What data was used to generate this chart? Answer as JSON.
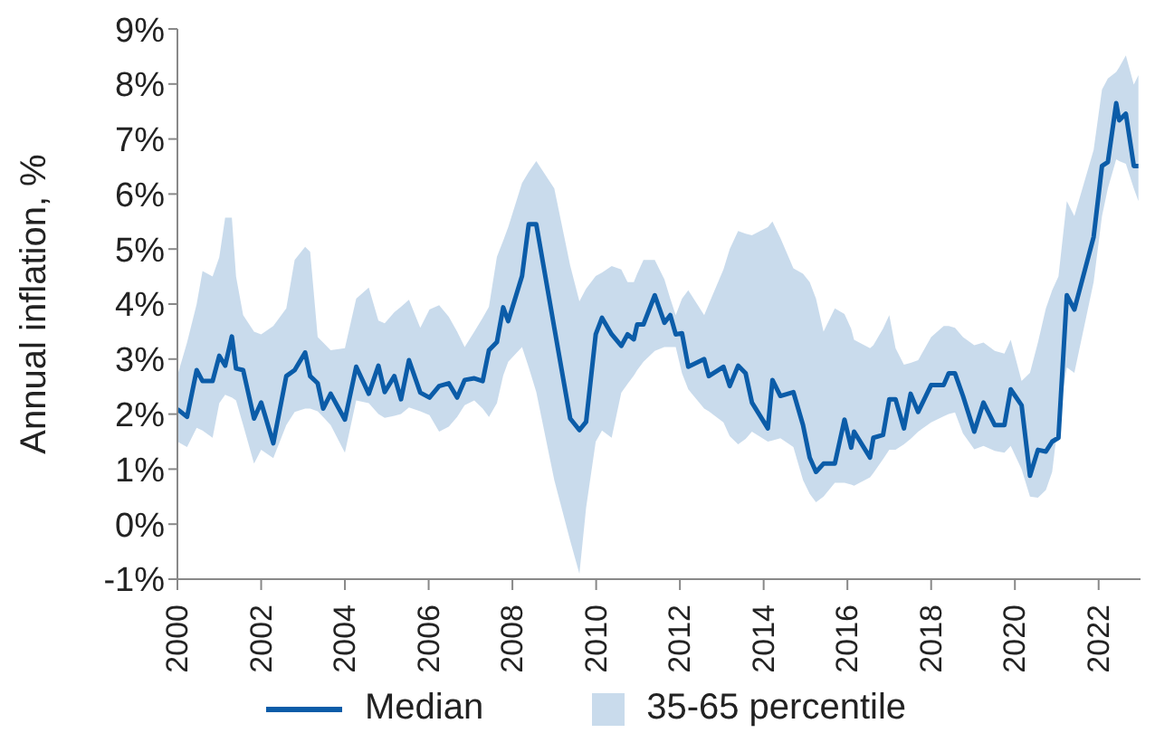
{
  "chart_data": {
    "type": "line",
    "ylabel": "Annual inflation, %",
    "xlim": [
      2000,
      2023
    ],
    "xticks": [
      2000,
      2002,
      2004,
      2006,
      2008,
      2010,
      2012,
      2014,
      2016,
      2018,
      2020,
      2022
    ],
    "ylim": [
      -1,
      9
    ],
    "yticks": [
      {
        "value": -1,
        "label": "-1%"
      },
      {
        "value": 0,
        "label": "0%"
      },
      {
        "value": 1,
        "label": "1%"
      },
      {
        "value": 2,
        "label": "2%"
      },
      {
        "value": 3,
        "label": "3%"
      },
      {
        "value": 4,
        "label": "4%"
      },
      {
        "value": 5,
        "label": "5%"
      },
      {
        "value": 6,
        "label": "6%"
      },
      {
        "value": 7,
        "label": "7%"
      },
      {
        "value": 8,
        "label": "8%"
      },
      {
        "value": 9,
        "label": "9%"
      }
    ],
    "grid": false,
    "legend": "bottom",
    "line_style": "solid",
    "marker": "none",
    "annotations": [
      "35-65 percentile"
    ],
    "series": [
      {
        "name": "Median",
        "color": "#0b5ca8",
        "x": [
          2000.0,
          2000.23,
          2000.46,
          2000.6,
          2000.84,
          2001.0,
          2001.14,
          2001.3,
          2001.4,
          2001.57,
          2001.83,
          2002.0,
          2002.29,
          2002.6,
          2002.8,
          2003.05,
          2003.17,
          2003.35,
          2003.48,
          2003.66,
          2004.0,
          2004.27,
          2004.57,
          2004.8,
          2004.95,
          2005.18,
          2005.34,
          2005.53,
          2005.8,
          2006.02,
          2006.25,
          2006.48,
          2006.68,
          2006.86,
          2007.09,
          2007.29,
          2007.44,
          2007.63,
          2007.78,
          2007.9,
          2008.23,
          2008.39,
          2008.57,
          2009.0,
          2009.38,
          2009.6,
          2009.76,
          2009.99,
          2010.14,
          2010.37,
          2010.6,
          2010.75,
          2010.9,
          2010.98,
          2011.13,
          2011.4,
          2011.63,
          2011.77,
          2011.9,
          2012.05,
          2012.2,
          2012.58,
          2012.69,
          2013.04,
          2013.19,
          2013.39,
          2013.57,
          2013.72,
          2014.1,
          2014.21,
          2014.4,
          2014.71,
          2014.94,
          2015.1,
          2015.25,
          2015.43,
          2015.7,
          2015.93,
          2016.09,
          2016.16,
          2016.54,
          2016.62,
          2016.85,
          2017.0,
          2017.15,
          2017.35,
          2017.51,
          2017.69,
          2018.0,
          2018.3,
          2018.42,
          2018.57,
          2018.76,
          2019.03,
          2019.25,
          2019.52,
          2019.75,
          2019.9,
          2020.16,
          2020.36,
          2020.55,
          2020.74,
          2020.89,
          2021.04,
          2021.24,
          2021.42,
          2021.88,
          2022.08,
          2022.22,
          2022.42,
          2022.49,
          2022.65,
          2022.84,
          2022.95
        ],
        "values": [
          2.09,
          1.95,
          2.8,
          2.6,
          2.6,
          3.06,
          2.88,
          3.41,
          2.83,
          2.8,
          1.92,
          2.21,
          1.47,
          2.69,
          2.8,
          3.12,
          2.69,
          2.56,
          2.1,
          2.37,
          1.9,
          2.86,
          2.37,
          2.88,
          2.4,
          2.69,
          2.27,
          2.98,
          2.39,
          2.3,
          2.51,
          2.56,
          2.3,
          2.62,
          2.65,
          2.6,
          3.16,
          3.31,
          3.94,
          3.69,
          4.51,
          5.45,
          5.45,
          3.57,
          1.92,
          1.71,
          1.86,
          3.45,
          3.75,
          3.45,
          3.24,
          3.45,
          3.36,
          3.63,
          3.63,
          4.16,
          3.66,
          3.8,
          3.45,
          3.47,
          2.86,
          3.0,
          2.69,
          2.86,
          2.51,
          2.88,
          2.74,
          2.21,
          1.74,
          2.62,
          2.33,
          2.4,
          1.8,
          1.21,
          0.95,
          1.1,
          1.1,
          1.9,
          1.39,
          1.68,
          1.21,
          1.57,
          1.62,
          2.27,
          2.27,
          1.74,
          2.37,
          2.04,
          2.53,
          2.53,
          2.74,
          2.74,
          2.33,
          1.68,
          2.21,
          1.8,
          1.8,
          2.45,
          2.16,
          0.88,
          1.35,
          1.32,
          1.5,
          1.57,
          4.16,
          3.9,
          5.22,
          6.51,
          6.58,
          7.65,
          7.34,
          7.46,
          6.51,
          6.51
        ],
        "lower": [
          1.5,
          1.4,
          1.75,
          1.7,
          1.57,
          2.2,
          2.35,
          2.3,
          2.25,
          1.8,
          1.1,
          1.35,
          1.2,
          1.8,
          2.04,
          2.1,
          2.1,
          2.05,
          1.95,
          1.8,
          1.3,
          2.25,
          2.2,
          2.0,
          1.93,
          1.97,
          2.0,
          2.12,
          2.05,
          1.98,
          1.68,
          1.77,
          1.95,
          2.16,
          2.25,
          2.1,
          1.95,
          2.2,
          2.7,
          2.95,
          3.22,
          2.85,
          2.4,
          0.8,
          -0.3,
          -0.9,
          0.3,
          1.5,
          1.7,
          1.57,
          2.39,
          2.55,
          2.7,
          2.8,
          2.95,
          3.15,
          3.22,
          3.22,
          3.22,
          2.74,
          2.45,
          2.1,
          2.05,
          1.85,
          1.6,
          1.45,
          1.55,
          1.68,
          1.5,
          1.52,
          1.56,
          1.4,
          0.8,
          0.55,
          0.4,
          0.5,
          0.75,
          0.75,
          0.72,
          0.7,
          0.85,
          0.93,
          1.18,
          1.35,
          1.35,
          1.45,
          1.55,
          1.68,
          1.85,
          1.96,
          2.0,
          2.03,
          1.65,
          1.36,
          1.42,
          1.33,
          1.3,
          1.42,
          1.0,
          0.5,
          0.48,
          0.62,
          0.95,
          1.9,
          2.85,
          2.75,
          4.4,
          5.6,
          6.1,
          6.63,
          6.6,
          6.55,
          6.1,
          5.87
        ],
        "upper": [
          2.7,
          3.3,
          4.0,
          4.6,
          4.5,
          4.85,
          5.57,
          5.57,
          4.5,
          3.8,
          3.5,
          3.45,
          3.6,
          3.92,
          4.8,
          5.04,
          4.95,
          3.4,
          3.3,
          3.16,
          3.2,
          4.1,
          4.3,
          3.7,
          3.65,
          3.85,
          3.95,
          4.08,
          3.57,
          3.9,
          3.98,
          3.77,
          3.5,
          3.22,
          3.5,
          3.75,
          3.95,
          4.86,
          5.15,
          5.4,
          6.2,
          6.4,
          6.6,
          6.1,
          4.7,
          4.05,
          4.28,
          4.51,
          4.57,
          4.69,
          4.63,
          4.4,
          4.4,
          4.55,
          4.8,
          4.8,
          4.45,
          4.1,
          3.8,
          4.1,
          4.25,
          3.8,
          4.0,
          4.63,
          5.0,
          5.33,
          5.28,
          5.25,
          5.4,
          5.5,
          5.2,
          4.65,
          4.55,
          4.4,
          4.1,
          3.5,
          3.92,
          3.82,
          3.55,
          3.35,
          3.2,
          3.25,
          3.55,
          3.8,
          3.2,
          2.9,
          2.93,
          2.98,
          3.4,
          3.6,
          3.6,
          3.57,
          3.4,
          3.25,
          3.3,
          3.15,
          3.1,
          3.35,
          2.6,
          2.75,
          3.3,
          3.92,
          4.25,
          4.5,
          5.87,
          5.6,
          6.8,
          7.9,
          8.1,
          8.22,
          8.3,
          8.52,
          7.99,
          8.16
        ]
      }
    ]
  }
}
